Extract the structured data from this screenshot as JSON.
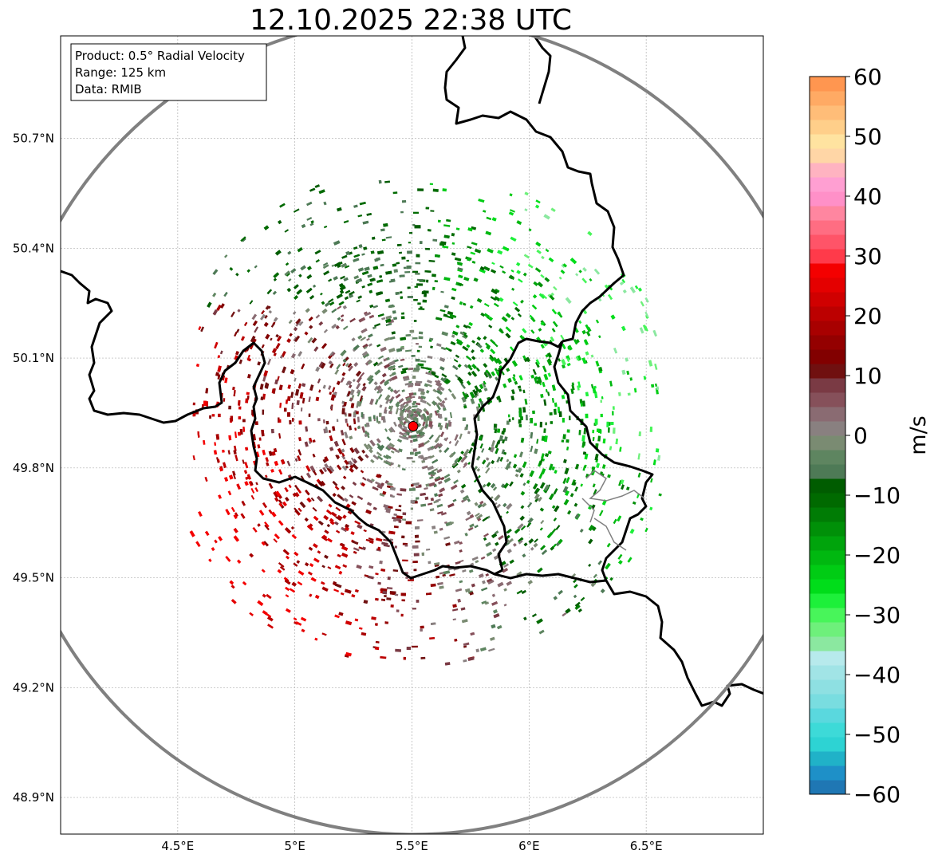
{
  "title": "12.10.2025 22:38 UTC",
  "info_box": {
    "product": "Product: 0.5° Radial Velocity",
    "range": "Range: 125 km",
    "data": "Data: RMIB"
  },
  "map": {
    "lon_range": [
      4.0,
      7.0
    ],
    "lat_range": [
      48.8,
      50.98
    ],
    "lon_ticks": [
      "4.5°E",
      "5°E",
      "5.5°E",
      "6°E",
      "6.5°E"
    ],
    "lon_tick_values": [
      4.5,
      5.0,
      5.5,
      6.0,
      6.5
    ],
    "lat_ticks": [
      "48.9°N",
      "49.2°N",
      "49.5°N",
      "49.8°N",
      "50.1°N",
      "50.4°N",
      "50.7°N"
    ],
    "lat_tick_values": [
      48.9,
      49.2,
      49.5,
      49.8,
      50.1,
      50.4,
      50.7
    ],
    "radar_site": {
      "lon": 5.505,
      "lat": 49.914
    },
    "range_km": 125
  },
  "colorbar": {
    "label": "m/s",
    "min": -60,
    "max": 60,
    "ticks": [
      "60",
      "50",
      "40",
      "30",
      "20",
      "10",
      "0",
      "−10",
      "−20",
      "−30",
      "−40",
      "−50",
      "−60"
    ],
    "tick_values": [
      60,
      50,
      40,
      30,
      20,
      10,
      0,
      -10,
      -20,
      -30,
      -40,
      -50,
      -60
    ],
    "colors": [
      "#1f77b4",
      "#1e90c8",
      "#20b2c8",
      "#2dd3d3",
      "#3ddad8",
      "#5ad8de",
      "#79dde0",
      "#8ee0e2",
      "#a1e4e6",
      "#b7eaec",
      "#8be8a0",
      "#6ef07b",
      "#48f55a",
      "#1df03a",
      "#00dd1a",
      "#00cc14",
      "#00b810",
      "#00a40c",
      "#009008",
      "#007c05",
      "#006a00",
      "#005c00",
      "#4e7a56",
      "#5e8560",
      "#7a8b72",
      "#898080",
      "#8a6b72",
      "#86505a",
      "#7a3a44",
      "#701010",
      "#820000",
      "#940000",
      "#a80000",
      "#bc0000",
      "#d00000",
      "#e40000",
      "#f40000",
      "#ff3a4a",
      "#ff5468",
      "#ff6d82",
      "#ff86a0",
      "#ff90c8",
      "#ff9fd2",
      "#ffb3c1",
      "#ffd6a6",
      "#ffe3a0",
      "#ffcf8a",
      "#ffbd78",
      "#ffaa64",
      "#ff9650"
    ]
  },
  "velocity_field": {
    "description_class": "radial-velocity-echoes",
    "seed": 4127
  }
}
